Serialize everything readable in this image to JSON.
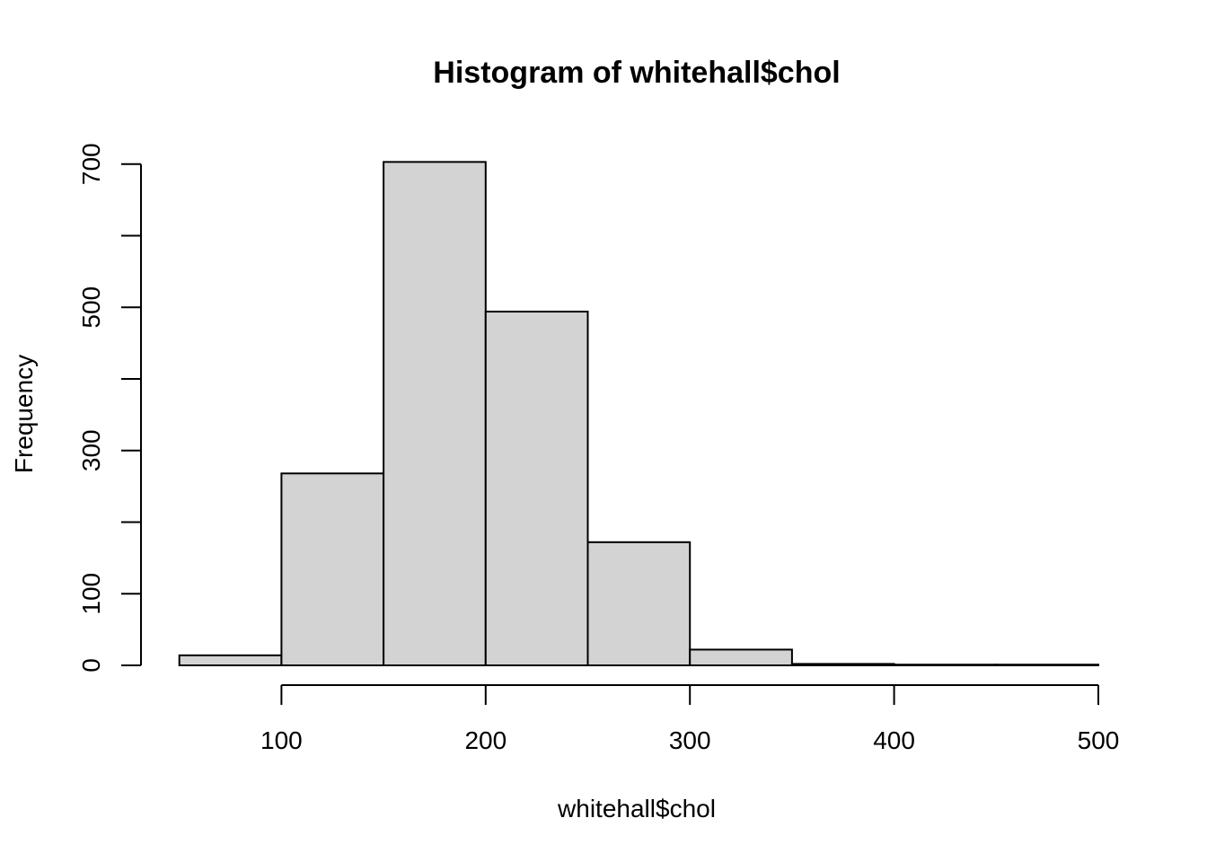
{
  "chart_data": {
    "type": "bar",
    "title": "Histogram of whitehall$chol",
    "xlabel": "whitehall$chol",
    "ylabel": "Frequency",
    "bins": [
      {
        "from": 50,
        "to": 100,
        "count": 14
      },
      {
        "from": 100,
        "to": 150,
        "count": 268
      },
      {
        "from": 150,
        "to": 200,
        "count": 703
      },
      {
        "from": 200,
        "to": 250,
        "count": 494
      },
      {
        "from": 250,
        "to": 300,
        "count": 172
      },
      {
        "from": 300,
        "to": 350,
        "count": 22
      },
      {
        "from": 350,
        "to": 400,
        "count": 2
      },
      {
        "from": 400,
        "to": 450,
        "count": 1
      },
      {
        "from": 450,
        "to": 500,
        "count": 1
      }
    ],
    "x_ticks": [
      100,
      200,
      300,
      400,
      500
    ],
    "x_tick_labels": [
      "100",
      "200",
      "300",
      "400",
      "500"
    ],
    "y_ticks": [
      0,
      100,
      200,
      300,
      400,
      500,
      600,
      700
    ],
    "y_tick_labels": [
      "0",
      "100",
      "",
      "300",
      "",
      "500",
      "",
      "700"
    ],
    "xlim": [
      50,
      500
    ],
    "ylim": [
      0,
      700
    ],
    "bar_color": "#d3d3d3",
    "grid": false
  }
}
